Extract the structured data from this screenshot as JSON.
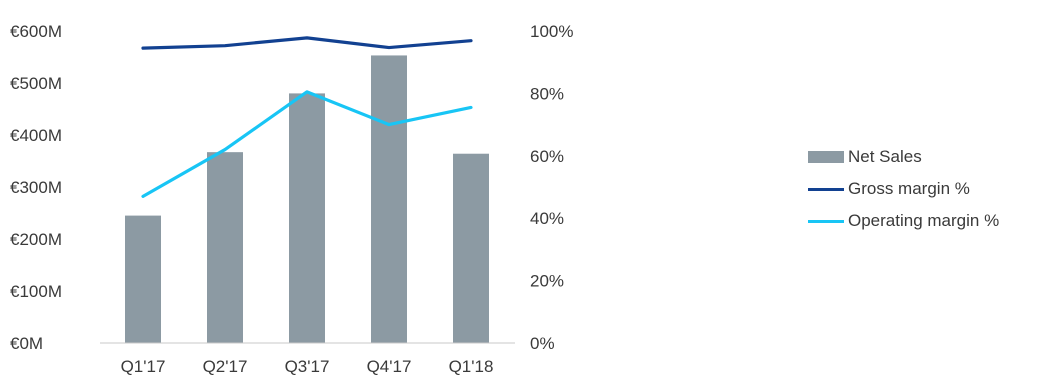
{
  "chart_data": {
    "type": "bar",
    "categories": [
      "Q1'17",
      "Q2'17",
      "Q3'17",
      "Q4'17",
      "Q1'18"
    ],
    "series": [
      {
        "name": "Net Sales",
        "kind": "bar",
        "axis": "left",
        "values": [
          245,
          367,
          480,
          553,
          364
        ],
        "color": "#8c9aa3"
      },
      {
        "name": "Gross margin %",
        "kind": "line",
        "axis": "right",
        "values": [
          94.5,
          95.3,
          97.8,
          94.7,
          96.9
        ],
        "color": "#124191"
      },
      {
        "name": "Operating margin %",
        "kind": "line",
        "axis": "right",
        "values": [
          47,
          62,
          80.5,
          70,
          75.5
        ],
        "color": "#18c5f5"
      }
    ],
    "left_axis": {
      "ylim": [
        0,
        600
      ],
      "ticks": [
        0,
        100,
        200,
        300,
        400,
        500,
        600
      ],
      "tick_labels": [
        "€0M",
        "€100M",
        "€200M",
        "€300M",
        "€400M",
        "€500M",
        "€600M"
      ]
    },
    "right_axis": {
      "ylim": [
        0,
        100
      ],
      "ticks": [
        0,
        20,
        40,
        60,
        80,
        100
      ],
      "tick_labels": [
        "0%",
        "20%",
        "40%",
        "60%",
        "80%",
        "100%"
      ]
    },
    "grid": false,
    "legend_position": "right"
  }
}
